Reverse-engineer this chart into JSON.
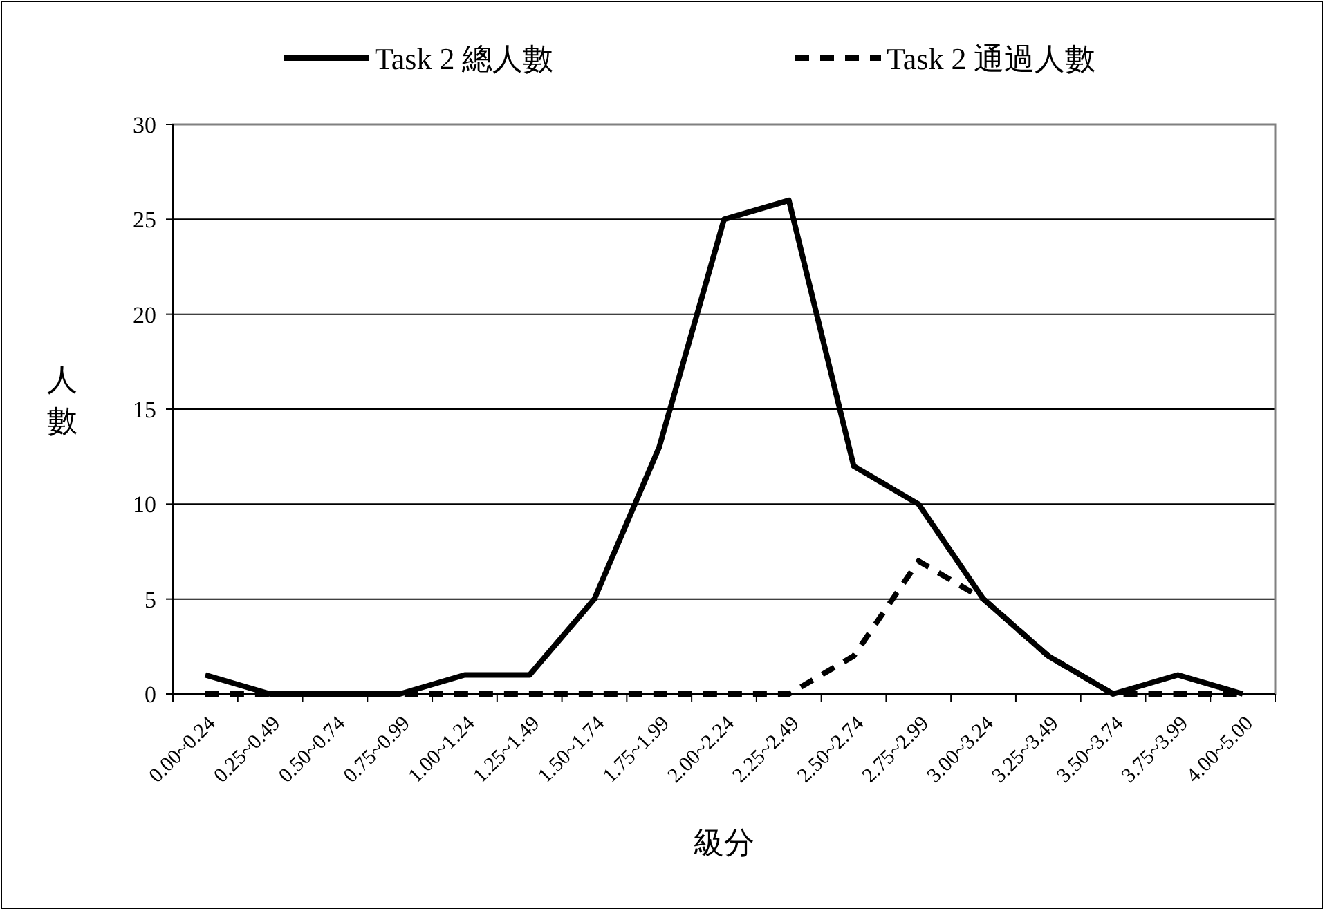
{
  "chart_data": {
    "type": "line",
    "xlabel": "級分",
    "ylabel": "人數",
    "categories": [
      "0.00~0.24",
      "0.25~0.49",
      "0.50~0.74",
      "0.75~0.99",
      "1.00~1.24",
      "1.25~1.49",
      "1.50~1.74",
      "1.75~1.99",
      "2.00~2.24",
      "2.25~2.49",
      "2.50~2.74",
      "2.75~2.99",
      "3.00~3.24",
      "3.25~3.49",
      "3.50~3.74",
      "3.75~3.99",
      "4.00~5.00"
    ],
    "series": [
      {
        "name": "Task 2 總人數",
        "color": "#000000",
        "line_style": "solid",
        "values": [
          1,
          0,
          0,
          0,
          1,
          1,
          5,
          13,
          25,
          26,
          12,
          10,
          5,
          2,
          0,
          1,
          0
        ]
      },
      {
        "name": "Task 2 通過人數",
        "color": "#000000",
        "line_style": "dashed",
        "values": [
          0,
          0,
          0,
          0,
          0,
          0,
          0,
          0,
          0,
          0,
          2,
          7,
          5,
          2,
          0,
          0,
          0
        ]
      }
    ],
    "ylim": [
      0,
      30
    ],
    "yticks": [
      0,
      5,
      10,
      15,
      20,
      25,
      30
    ],
    "grid": "y",
    "legend": "top",
    "marker": "none"
  }
}
